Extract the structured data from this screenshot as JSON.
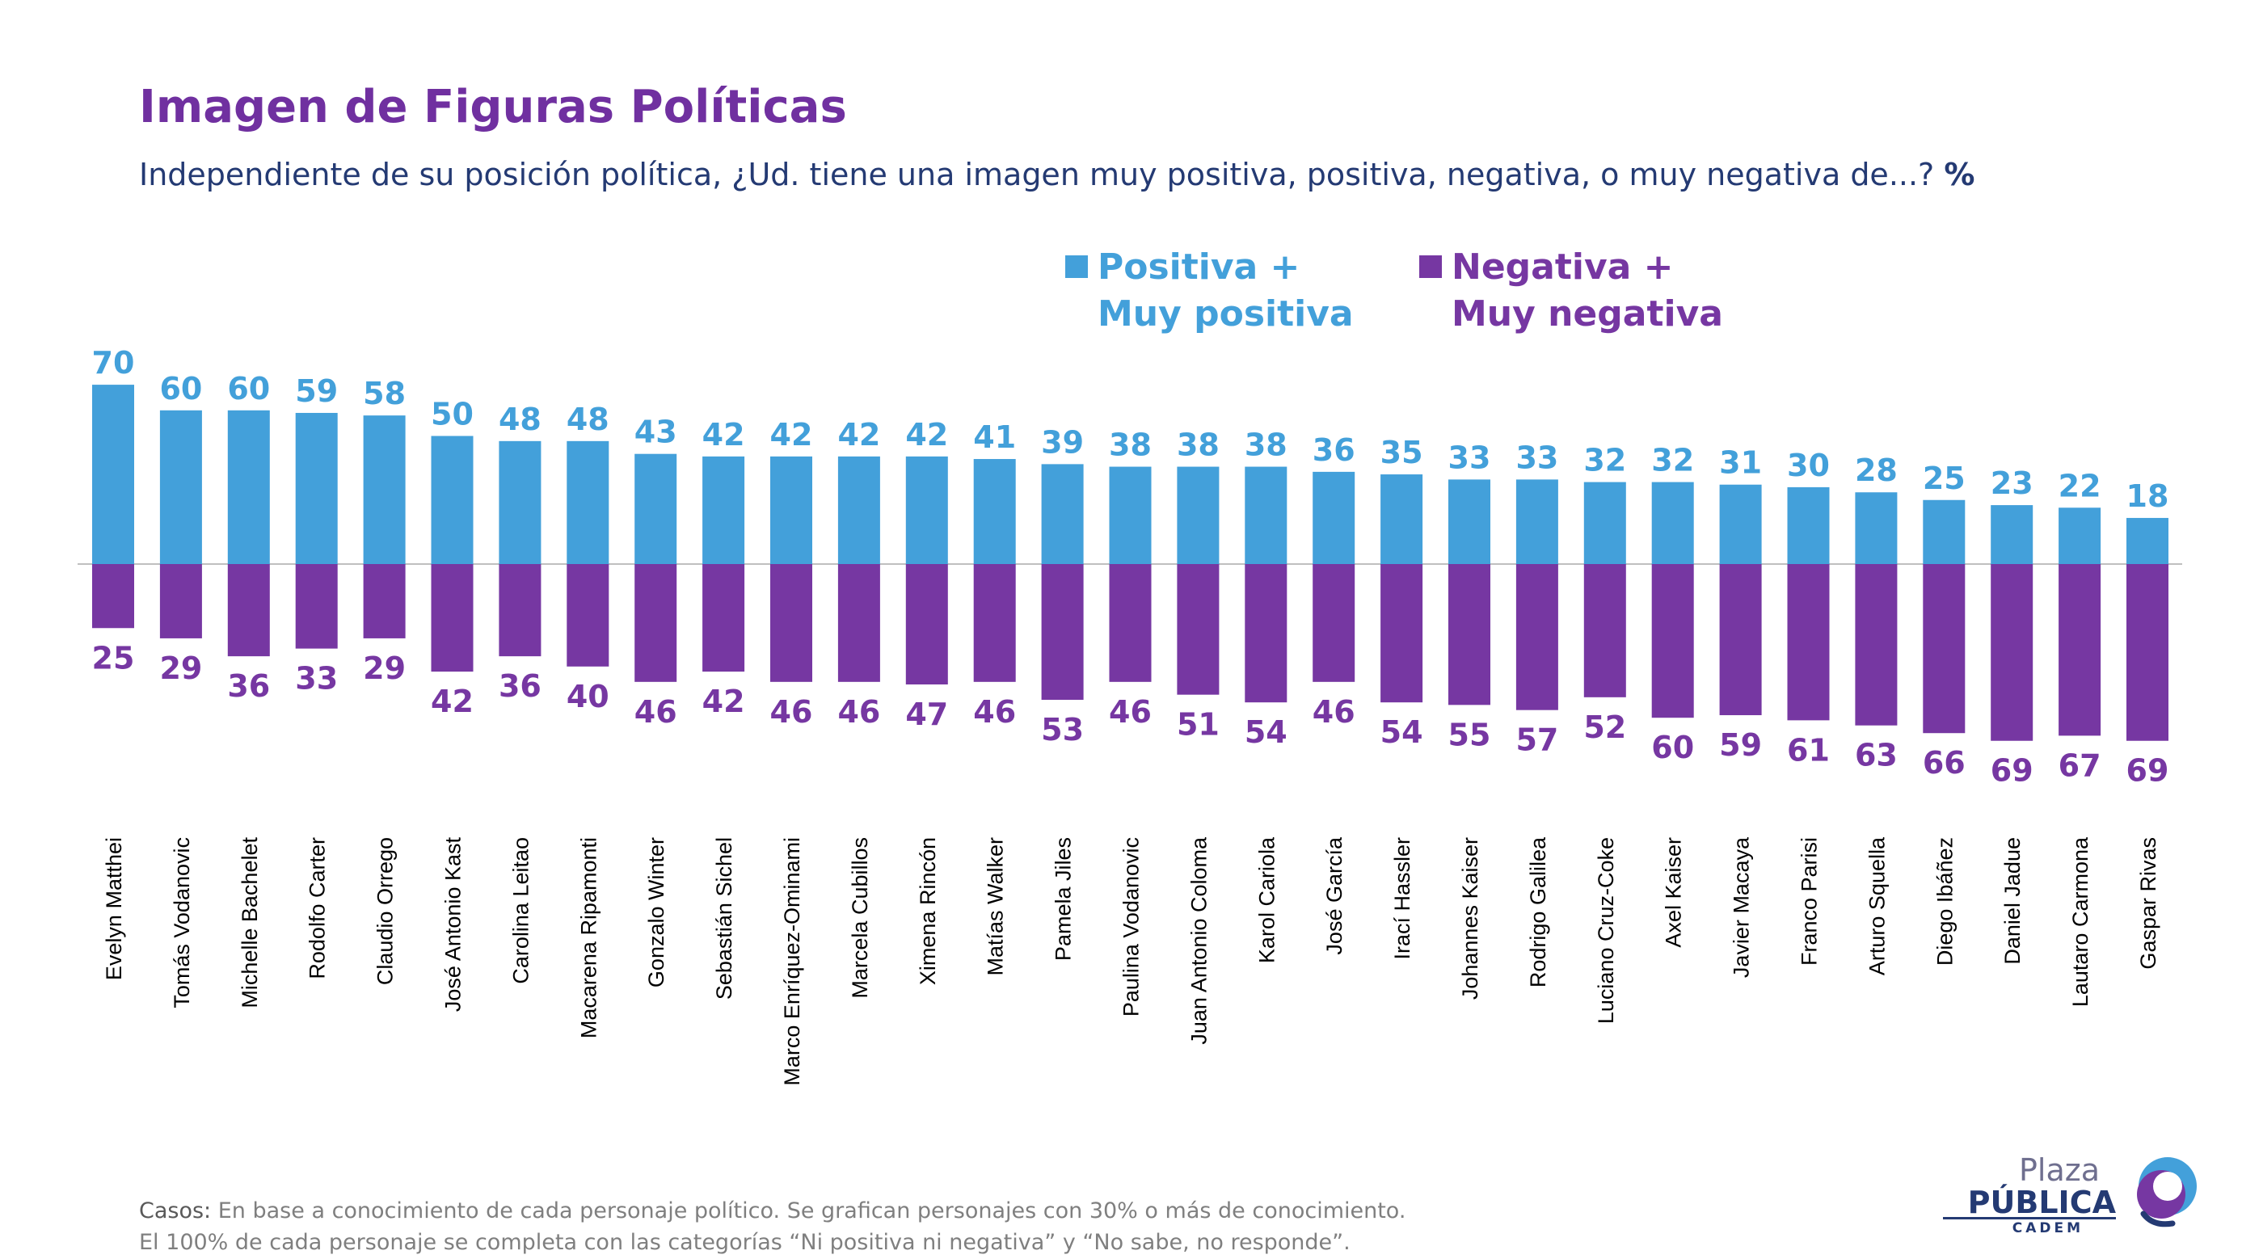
{
  "title": "Imagen de Figuras Políticas",
  "subtitle": "Independiente de su posición política, ¿Ud. tiene una imagen muy positiva, positiva, negativa, o muy negativa de...?",
  "subtitle_unit": "%",
  "legend": {
    "positive": "Positiva +\nMuy positiva",
    "negative": "Negativa +\nMuy negativa"
  },
  "colors": {
    "positive": "#43A0DA",
    "negative": "#7637A2",
    "title": "#7030A0",
    "text": "#243A73"
  },
  "chart_data": {
    "type": "bar",
    "categories": [
      "Evelyn Matthei",
      "Tomás Vodanovic",
      "Michelle Bachelet",
      "Rodolfo Carter",
      "Claudio Orrego",
      "José Antonio Kast",
      "Carolina Leitao",
      "Macarena Ripamonti",
      "Gonzalo Winter",
      "Sebastián Sichel",
      "Marco Enríquez-Ominami",
      "Marcela Cubillos",
      "Ximena Rincón",
      "Matías Walker",
      "Pamela Jiles",
      "Paulina Vodanovic",
      "Juan Antonio Coloma",
      "Karol Cariola",
      "José García",
      "Irací Hassler",
      "Johannes Kaiser",
      "Rodrigo Galilea",
      "Luciano Cruz-Coke",
      "Axel Kaiser",
      "Javier Macaya",
      "Franco Parisi",
      "Arturo Squella",
      "Diego Ibáñez",
      "Daniel Jadue",
      "Lautaro Carmona",
      "Gaspar Rivas"
    ],
    "series": [
      {
        "name": "Positiva + Muy positiva",
        "values": [
          70,
          60,
          60,
          59,
          58,
          50,
          48,
          48,
          43,
          42,
          42,
          42,
          42,
          41,
          39,
          38,
          38,
          38,
          36,
          35,
          33,
          33,
          32,
          32,
          31,
          30,
          28,
          25,
          23,
          22,
          18
        ]
      },
      {
        "name": "Negativa + Muy negativa",
        "values": [
          25,
          29,
          36,
          33,
          29,
          42,
          36,
          40,
          46,
          42,
          46,
          46,
          47,
          46,
          53,
          46,
          51,
          54,
          46,
          54,
          55,
          57,
          52,
          60,
          59,
          61,
          63,
          66,
          69,
          67,
          69
        ]
      }
    ],
    "grid": false,
    "legend_position": "top-right"
  },
  "footnote": {
    "line1_lead": "Casos:",
    "line1_text": " En base a conocimiento de cada personaje político. Se grafican personajes con 30% o más de conocimiento.",
    "line2": "El 100% de cada personaje se completa con las categorías “Ni positiva ni negativa” y “No sabe, no responde”."
  },
  "logo": {
    "top": "Plaza",
    "middle": "PÚBLICA",
    "bottom": "CADEM"
  }
}
